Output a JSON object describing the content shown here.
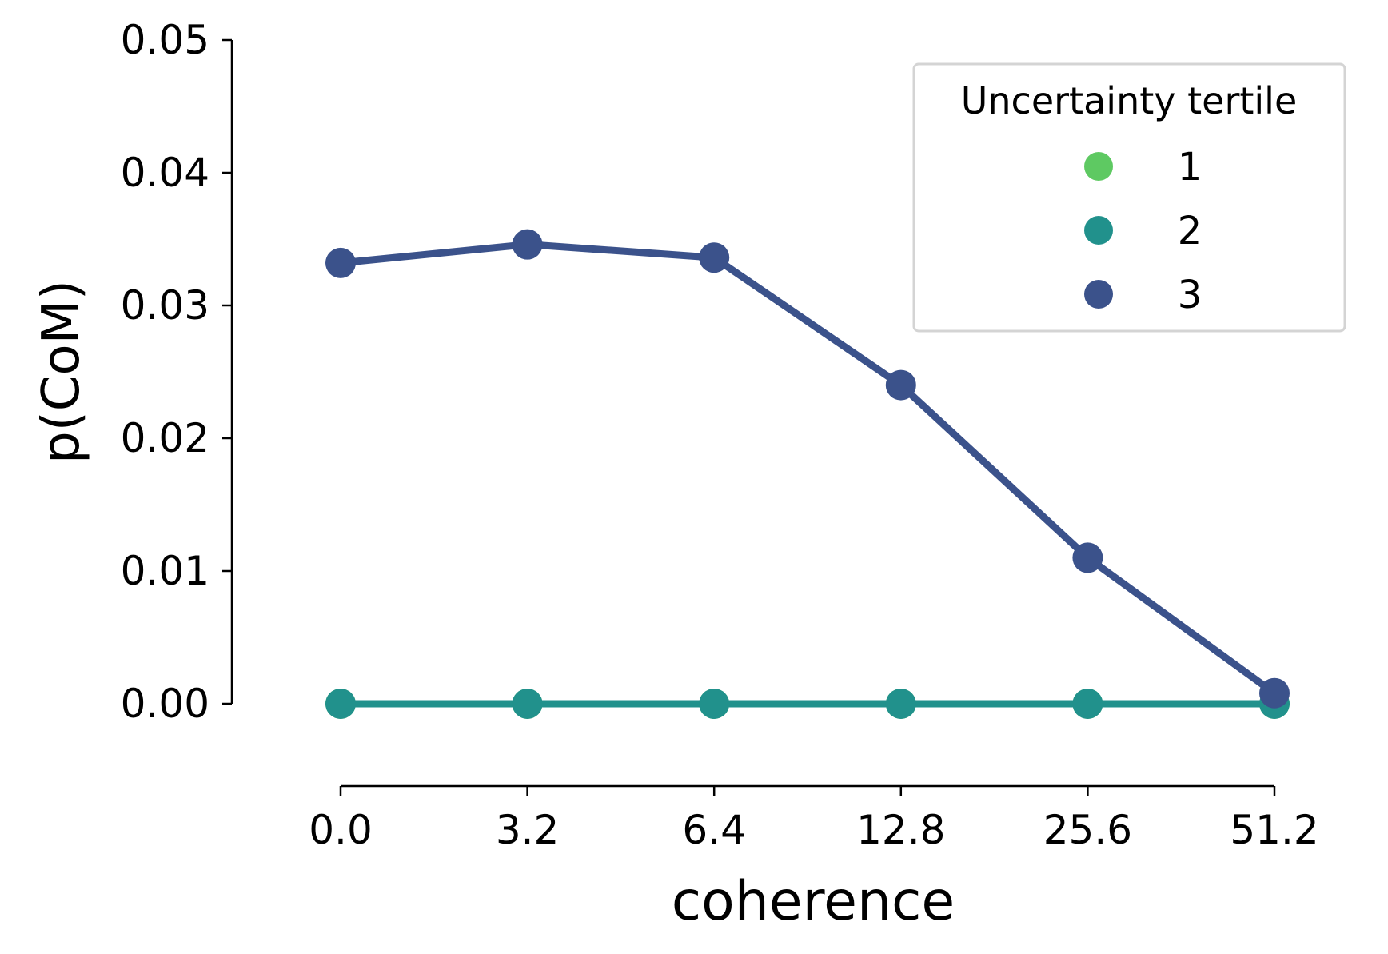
{
  "chart_data": {
    "type": "line",
    "categories": [
      "0.0",
      "3.2",
      "6.4",
      "12.8",
      "25.6",
      "51.2"
    ],
    "xlabel": "coherence",
    "ylabel": "p(CoM)",
    "ylim": [
      -0.006,
      0.05
    ],
    "yticks": [
      "0.00",
      "0.01",
      "0.02",
      "0.03",
      "0.04",
      "0.05"
    ],
    "ytick_values": [
      0,
      0.01,
      0.02,
      0.03,
      0.04,
      0.05
    ],
    "grid": false,
    "legend": {
      "title": "Uncertainty tertile",
      "placement": "top-right",
      "entries": [
        "1",
        "2",
        "3"
      ]
    },
    "series": [
      {
        "name": "1",
        "color": "#5ec962",
        "values": [
          0,
          0,
          0,
          0,
          0,
          0
        ]
      },
      {
        "name": "2",
        "color": "#21918c",
        "values": [
          0,
          0,
          0,
          0,
          0,
          0
        ]
      },
      {
        "name": "3",
        "color": "#3b528b",
        "values": [
          0.0332,
          0.0346,
          0.0336,
          0.024,
          0.011,
          0.0008
        ]
      }
    ]
  }
}
